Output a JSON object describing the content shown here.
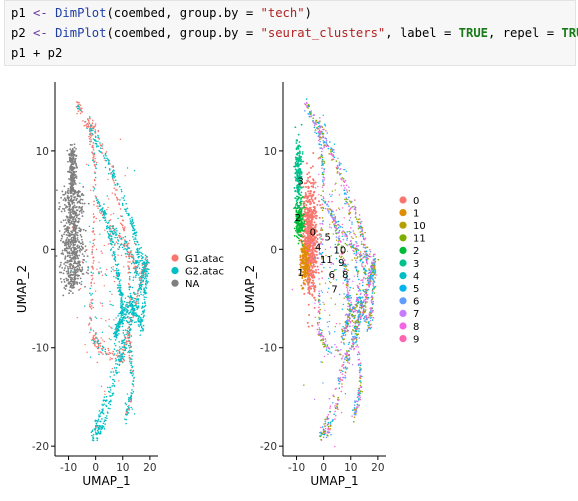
{
  "code": {
    "line1": {
      "v": "p1",
      "op": "<-",
      "fn": "DimPlot",
      "args_pre": "(coembed, group.by = ",
      "str": "\"tech\"",
      "args_post": ")"
    },
    "line2": {
      "v": "p2",
      "op": "<-",
      "fn": "DimPlot",
      "args_pre": "(coembed, group.by = ",
      "str": "\"seurat_clusters\"",
      "mid1": ", label = ",
      "bool1": "TRUE",
      "mid2": ", repel = ",
      "bool2": "TRUE",
      "args_post": ")"
    },
    "line3": "p1 + p2"
  },
  "chart_data": [
    {
      "type": "scatter",
      "xlabel": "UMAP_1",
      "ylabel": "UMAP_2",
      "xticks": [
        -10,
        0,
        10,
        20
      ],
      "yticks": [
        10,
        0,
        -10,
        -20
      ],
      "xlim": [
        -15,
        23
      ],
      "ylim": [
        -21,
        17
      ],
      "grid": false,
      "legend_position": "right",
      "legend": [
        {
          "label": "G1.atac",
          "color": "#F8766D"
        },
        {
          "label": "G2.atac",
          "color": "#00BFC4"
        },
        {
          "label": "NA",
          "color": "#7F7F7F"
        }
      ]
    },
    {
      "type": "scatter",
      "xlabel": "UMAP_1",
      "ylabel": "UMAP_2",
      "xticks": [
        -10,
        0,
        10,
        20
      ],
      "yticks": [
        10,
        0,
        -10,
        -20
      ],
      "xlim": [
        -15,
        23
      ],
      "ylim": [
        -21,
        17
      ],
      "grid": false,
      "legend_position": "right",
      "legend": [
        {
          "label": "0",
          "color": "#F8766D"
        },
        {
          "label": "1",
          "color": "#DE8C00"
        },
        {
          "label": "10",
          "color": "#B79F00"
        },
        {
          "label": "11",
          "color": "#7CAE00"
        },
        {
          "label": "2",
          "color": "#00BA38"
        },
        {
          "label": "3",
          "color": "#00C08B"
        },
        {
          "label": "4",
          "color": "#00BFC4"
        },
        {
          "label": "5",
          "color": "#00B4F0"
        },
        {
          "label": "6",
          "color": "#619CFF"
        },
        {
          "label": "7",
          "color": "#C77CFF"
        },
        {
          "label": "8",
          "color": "#F564E3"
        },
        {
          "label": "9",
          "color": "#FF64B0"
        }
      ],
      "cluster_labels": [
        {
          "text": "3",
          "x": -8.5,
          "y": 7
        },
        {
          "text": "2",
          "x": -9.5,
          "y": 3.3
        },
        {
          "text": "0",
          "x": -4,
          "y": 1.8
        },
        {
          "text": "4",
          "x": -2,
          "y": 0.3
        },
        {
          "text": "5",
          "x": 1.5,
          "y": 1.3
        },
        {
          "text": "10",
          "x": 6,
          "y": 0
        },
        {
          "text": "11",
          "x": 1,
          "y": -1
        },
        {
          "text": "9",
          "x": 6.5,
          "y": -1.3
        },
        {
          "text": "1",
          "x": -8.5,
          "y": -2.3
        },
        {
          "text": "6",
          "x": 3,
          "y": -2.5
        },
        {
          "text": "8",
          "x": 8,
          "y": -2.5
        },
        {
          "text": "7",
          "x": 4,
          "y": -4
        }
      ]
    }
  ]
}
